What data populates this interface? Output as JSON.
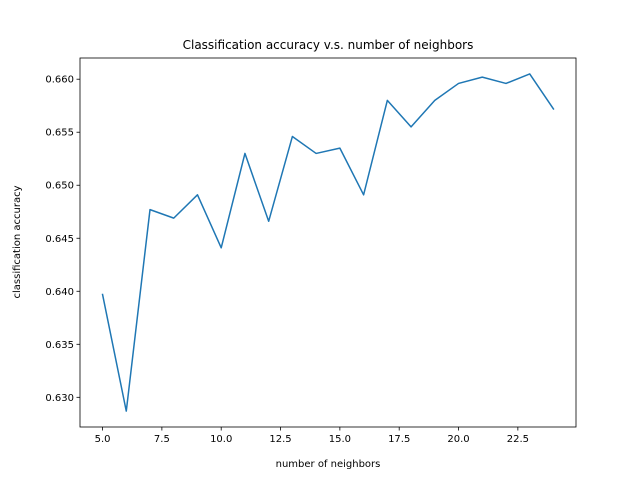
{
  "chart_data": {
    "type": "line",
    "title": "Classification accuracy v.s. number of neighbors",
    "xlabel": "number of neighbors",
    "ylabel": "classification accuracy",
    "xlim": [
      4.05,
      24.95
    ],
    "ylim": [
      0.6272,
      0.662
    ],
    "grid": false,
    "x_ticks": [
      5.0,
      7.5,
      10.0,
      12.5,
      15.0,
      17.5,
      20.0,
      22.5
    ],
    "x_tick_labels": [
      "5.0",
      "7.5",
      "10.0",
      "12.5",
      "15.0",
      "17.5",
      "20.0",
      "22.5"
    ],
    "y_ticks": [
      0.63,
      0.635,
      0.64,
      0.645,
      0.65,
      0.655,
      0.66
    ],
    "y_tick_labels": [
      "0.630",
      "0.635",
      "0.640",
      "0.645",
      "0.650",
      "0.655",
      "0.660"
    ],
    "series": [
      {
        "color": "#1f77b4",
        "x": [
          5,
          6,
          7,
          8,
          9,
          10,
          11,
          12,
          13,
          14,
          15,
          16,
          17,
          18,
          19,
          20,
          21,
          22,
          23,
          24
        ],
        "y": [
          0.6397,
          0.6287,
          0.6477,
          0.6469,
          0.6491,
          0.6441,
          0.653,
          0.6466,
          0.6546,
          0.653,
          0.6535,
          0.6491,
          0.658,
          0.6555,
          0.658,
          0.6596,
          0.6602,
          0.6596,
          0.6605,
          0.6572
        ]
      }
    ]
  }
}
